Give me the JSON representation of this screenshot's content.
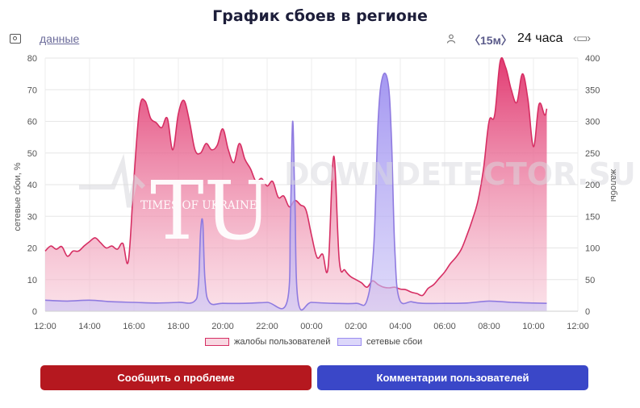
{
  "header": {
    "title": "График сбоев в регионе",
    "data_link": "данные",
    "interval": "〈15м〉",
    "period": "24 часа",
    "calendar_nav": "‹▭›"
  },
  "icons": [
    "camera-icon",
    "user-icon",
    "calendar-icon"
  ],
  "chart_data": {
    "type": "area",
    "x_ticks": [
      "12:00",
      "14:00",
      "16:00",
      "18:00",
      "20:00",
      "22:00",
      "00:00",
      "02:00",
      "04:00",
      "06:00",
      "08:00",
      "10:00",
      "12:00"
    ],
    "y_left": {
      "label": "сетевые сбои, %",
      "ticks": [
        "0",
        "10",
        "20",
        "30",
        "40",
        "50",
        "60",
        "70",
        "80"
      ],
      "range": [
        0,
        80
      ]
    },
    "y_right": {
      "label": "жалобы",
      "ticks": [
        "0",
        "50",
        "100",
        "150",
        "200",
        "250",
        "300",
        "350",
        "400"
      ],
      "range": [
        0,
        400
      ]
    },
    "x_hours_range": [
      12,
      36
    ],
    "series": [
      {
        "name": "жалобы пользователей",
        "color": "#d62e63",
        "axis": "right",
        "points": [
          [
            12.0,
            95
          ],
          [
            12.25,
            103
          ],
          [
            12.5,
            98
          ],
          [
            12.75,
            102
          ],
          [
            13.0,
            87
          ],
          [
            13.25,
            95
          ],
          [
            13.5,
            95
          ],
          [
            13.75,
            103
          ],
          [
            14.0,
            110
          ],
          [
            14.25,
            116
          ],
          [
            14.5,
            108
          ],
          [
            14.75,
            100
          ],
          [
            15.0,
            103
          ],
          [
            15.25,
            98
          ],
          [
            15.5,
            107
          ],
          [
            15.75,
            80
          ],
          [
            16.0,
            210
          ],
          [
            16.25,
            320
          ],
          [
            16.5,
            332
          ],
          [
            16.75,
            305
          ],
          [
            17.0,
            298
          ],
          [
            17.25,
            290
          ],
          [
            17.5,
            305
          ],
          [
            17.75,
            255
          ],
          [
            18.0,
            312
          ],
          [
            18.25,
            333
          ],
          [
            18.5,
            300
          ],
          [
            18.75,
            255
          ],
          [
            19.0,
            250
          ],
          [
            19.25,
            265
          ],
          [
            19.5,
            255
          ],
          [
            19.75,
            262
          ],
          [
            20.0,
            288
          ],
          [
            20.25,
            255
          ],
          [
            20.5,
            235
          ],
          [
            20.75,
            265
          ],
          [
            21.0,
            240
          ],
          [
            21.25,
            225
          ],
          [
            21.5,
            205
          ],
          [
            21.75,
            210
          ],
          [
            22.0,
            198
          ],
          [
            22.25,
            205
          ],
          [
            22.5,
            180
          ],
          [
            22.75,
            182
          ],
          [
            23.0,
            165
          ],
          [
            23.25,
            175
          ],
          [
            23.5,
            168
          ],
          [
            23.75,
            160
          ],
          [
            24.0,
            120
          ],
          [
            24.25,
            85
          ],
          [
            24.5,
            90
          ],
          [
            24.75,
            70
          ],
          [
            25.0,
            245
          ],
          [
            25.25,
            80
          ],
          [
            25.5,
            65
          ],
          [
            25.75,
            55
          ],
          [
            26.0,
            50
          ],
          [
            26.25,
            45
          ],
          [
            26.5,
            38
          ],
          [
            26.75,
            48
          ],
          [
            27.0,
            42
          ],
          [
            27.25,
            38
          ],
          [
            27.5,
            37
          ],
          [
            27.75,
            38
          ],
          [
            28.0,
            35
          ],
          [
            28.25,
            34
          ],
          [
            28.5,
            30
          ],
          [
            28.75,
            28
          ],
          [
            29.0,
            25
          ],
          [
            29.25,
            36
          ],
          [
            29.5,
            42
          ],
          [
            29.75,
            52
          ],
          [
            30.0,
            62
          ],
          [
            30.25,
            75
          ],
          [
            30.5,
            85
          ],
          [
            30.75,
            98
          ],
          [
            31.0,
            120
          ],
          [
            31.25,
            145
          ],
          [
            31.5,
            175
          ],
          [
            31.75,
            225
          ],
          [
            32.0,
            300
          ],
          [
            32.25,
            310
          ],
          [
            32.5,
            395
          ],
          [
            32.75,
            385
          ],
          [
            33.0,
            350
          ],
          [
            33.25,
            330
          ],
          [
            33.5,
            375
          ],
          [
            33.75,
            335
          ],
          [
            34.0,
            260
          ],
          [
            34.25,
            327
          ],
          [
            34.5,
            310
          ],
          [
            34.6,
            320
          ]
        ]
      },
      {
        "name": "сетевые сбои",
        "color": "#8f7be0",
        "axis": "left",
        "points": [
          [
            12.0,
            3.5
          ],
          [
            13.0,
            3.2
          ],
          [
            14.0,
            3.5
          ],
          [
            15.0,
            3.0
          ],
          [
            16.0,
            2.8
          ],
          [
            17.0,
            2.6
          ],
          [
            18.0,
            2.8
          ],
          [
            18.7,
            3.0
          ],
          [
            18.9,
            8
          ],
          [
            19.0,
            25
          ],
          [
            19.1,
            28
          ],
          [
            19.2,
            10
          ],
          [
            19.4,
            2.8
          ],
          [
            20.0,
            2.5
          ],
          [
            21.0,
            2.5
          ],
          [
            22.0,
            2.8
          ],
          [
            22.9,
            3
          ],
          [
            23.05,
            30
          ],
          [
            23.15,
            60
          ],
          [
            23.25,
            35
          ],
          [
            23.4,
            3
          ],
          [
            24.0,
            2.8
          ],
          [
            25.0,
            2.5
          ],
          [
            26.0,
            2.5
          ],
          [
            26.5,
            3.5
          ],
          [
            26.8,
            20
          ],
          [
            27.0,
            60
          ],
          [
            27.2,
            74
          ],
          [
            27.45,
            72
          ],
          [
            27.6,
            55
          ],
          [
            27.75,
            20
          ],
          [
            27.95,
            4
          ],
          [
            28.5,
            3
          ],
          [
            29.0,
            2.5
          ],
          [
            30.0,
            2.5
          ],
          [
            31.0,
            2.6
          ],
          [
            32.0,
            3.2
          ],
          [
            33.0,
            2.8
          ],
          [
            34.0,
            2.6
          ],
          [
            34.6,
            2.5
          ]
        ]
      }
    ],
    "legend": "bottom-center",
    "grid": true
  },
  "watermark": {
    "logo_letters": "TU",
    "logo_sub": "TIMES OF UKRAINE",
    "site_text": "DOWNDETECTOR.SU"
  },
  "buttons": {
    "report": "Сообщить о проблеме",
    "comments": "Комментарии пользователей"
  }
}
